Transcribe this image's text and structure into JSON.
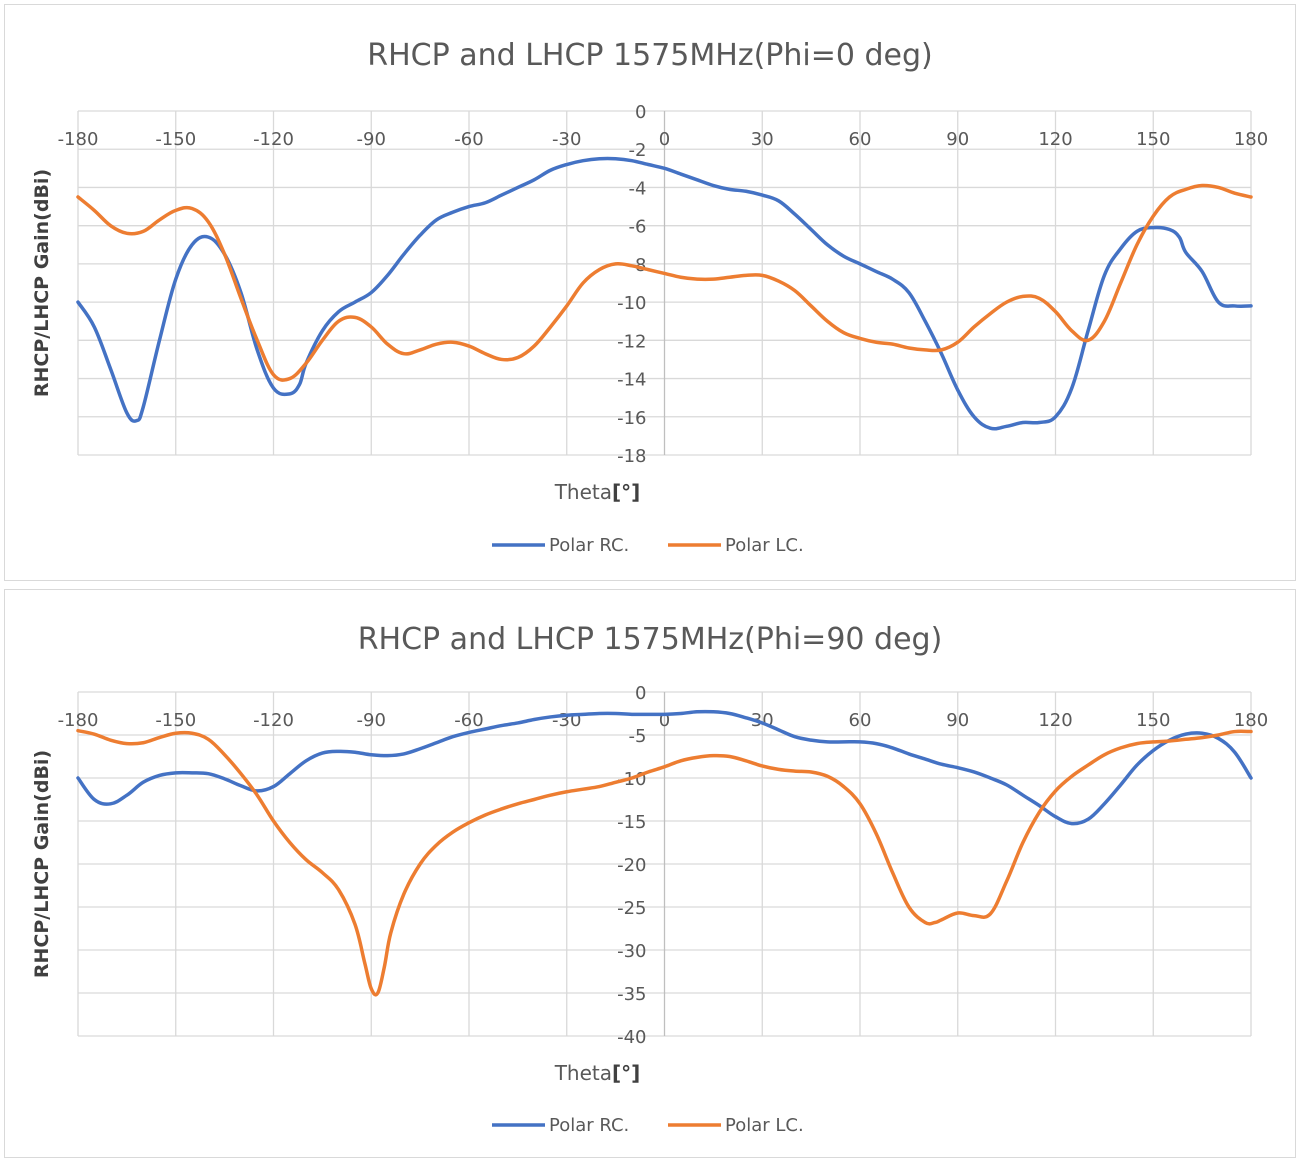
{
  "chart_data": [
    {
      "type": "line",
      "title": "RHCP and LHCP 1575MHz(Phi=0 deg)",
      "xlabel": "Theta[°]",
      "ylabel": "RHCP/LHCP Gain(dBi)",
      "xlim": [
        -180,
        180
      ],
      "ylim": [
        -18,
        0
      ],
      "xticks": [
        -180,
        -150,
        -120,
        -90,
        -60,
        -30,
        0,
        30,
        60,
        90,
        120,
        150,
        180
      ],
      "yticks": [
        0,
        -2,
        -4,
        -6,
        -8,
        -10,
        -12,
        -14,
        -16,
        -18
      ],
      "legend": "bottom",
      "series": [
        {
          "name": "Polar RC.",
          "color": "#4472C4",
          "x": [
            -180,
            -175,
            -170,
            -165,
            -162,
            -160,
            -155,
            -150,
            -145,
            -140,
            -135,
            -130,
            -125,
            -120,
            -115,
            -112,
            -110,
            -105,
            -100,
            -95,
            -90,
            -85,
            -80,
            -75,
            -70,
            -65,
            -60,
            -55,
            -50,
            -45,
            -40,
            -35,
            -30,
            -25,
            -20,
            -15,
            -10,
            -5,
            0,
            5,
            10,
            15,
            20,
            25,
            30,
            35,
            40,
            45,
            50,
            55,
            60,
            65,
            70,
            75,
            80,
            85,
            90,
            95,
            100,
            105,
            110,
            115,
            120,
            125,
            130,
            135,
            140,
            145,
            150,
            155,
            158,
            160,
            165,
            170,
            175,
            180
          ],
          "y": [
            -10.0,
            -11.3,
            -13.5,
            -15.8,
            -16.2,
            -15.5,
            -12.0,
            -8.8,
            -7.0,
            -6.6,
            -7.5,
            -9.5,
            -12.5,
            -14.5,
            -14.8,
            -14.3,
            -13.2,
            -11.5,
            -10.5,
            -10.0,
            -9.5,
            -8.6,
            -7.5,
            -6.5,
            -5.7,
            -5.3,
            -5.0,
            -4.8,
            -4.4,
            -4.0,
            -3.6,
            -3.1,
            -2.8,
            -2.6,
            -2.5,
            -2.5,
            -2.6,
            -2.8,
            -3.0,
            -3.3,
            -3.6,
            -3.9,
            -4.1,
            -4.2,
            -4.4,
            -4.7,
            -5.4,
            -6.2,
            -7.0,
            -7.6,
            -8.0,
            -8.4,
            -8.8,
            -9.5,
            -11.0,
            -12.7,
            -14.6,
            -16.0,
            -16.6,
            -16.5,
            -16.3,
            -16.3,
            -16.0,
            -14.5,
            -11.5,
            -8.6,
            -7.2,
            -6.3,
            -6.1,
            -6.2,
            -6.6,
            -7.4,
            -8.4,
            -10.0,
            -10.2,
            -10.2
          ]
        },
        {
          "name": "Polar LC.",
          "color": "#ED7D31",
          "x": [
            -180,
            -175,
            -170,
            -165,
            -160,
            -155,
            -150,
            -145,
            -140,
            -135,
            -130,
            -125,
            -120,
            -115,
            -110,
            -105,
            -100,
            -95,
            -90,
            -85,
            -80,
            -75,
            -70,
            -65,
            -60,
            -55,
            -50,
            -45,
            -40,
            -35,
            -30,
            -25,
            -20,
            -15,
            -10,
            -5,
            0,
            5,
            10,
            15,
            20,
            25,
            30,
            35,
            40,
            45,
            50,
            55,
            60,
            65,
            70,
            75,
            80,
            85,
            90,
            95,
            100,
            105,
            110,
            115,
            120,
            125,
            130,
            135,
            140,
            145,
            150,
            155,
            160,
            165,
            170,
            175,
            180
          ],
          "y": [
            -4.5,
            -5.2,
            -6.0,
            -6.4,
            -6.3,
            -5.7,
            -5.2,
            -5.1,
            -5.8,
            -7.5,
            -9.8,
            -12.0,
            -13.8,
            -14.0,
            -13.2,
            -12.0,
            -11.0,
            -10.8,
            -11.3,
            -12.2,
            -12.7,
            -12.5,
            -12.2,
            -12.1,
            -12.3,
            -12.7,
            -13.0,
            -12.9,
            -12.3,
            -11.3,
            -10.2,
            -9.0,
            -8.3,
            -8.0,
            -8.1,
            -8.3,
            -8.5,
            -8.7,
            -8.8,
            -8.8,
            -8.7,
            -8.6,
            -8.6,
            -8.9,
            -9.4,
            -10.2,
            -11.0,
            -11.6,
            -11.9,
            -12.1,
            -12.2,
            -12.4,
            -12.5,
            -12.5,
            -12.1,
            -11.3,
            -10.6,
            -10.0,
            -9.7,
            -9.8,
            -10.5,
            -11.5,
            -12.0,
            -11.0,
            -9.0,
            -7.0,
            -5.5,
            -4.5,
            -4.1,
            -3.9,
            -4.0,
            -4.3,
            -4.5
          ]
        }
      ]
    },
    {
      "type": "line",
      "title": "RHCP and LHCP 1575MHz(Phi=90 deg)",
      "xlabel": "Theta[°]",
      "ylabel": "RHCP/LHCP Gain(dBi)",
      "xlim": [
        -180,
        180
      ],
      "ylim": [
        -40,
        0
      ],
      "xticks": [
        -180,
        -150,
        -120,
        -90,
        -60,
        -30,
        0,
        30,
        60,
        90,
        120,
        150,
        180
      ],
      "yticks": [
        0,
        -5,
        -10,
        -15,
        -20,
        -25,
        -30,
        -35,
        -40
      ],
      "legend": "bottom",
      "series": [
        {
          "name": "Polar RC.",
          "color": "#4472C4",
          "x": [
            -180,
            -175,
            -170,
            -165,
            -160,
            -155,
            -150,
            -145,
            -140,
            -135,
            -130,
            -125,
            -120,
            -115,
            -110,
            -105,
            -100,
            -95,
            -90,
            -85,
            -80,
            -75,
            -70,
            -65,
            -60,
            -55,
            -50,
            -45,
            -40,
            -35,
            -30,
            -25,
            -20,
            -15,
            -10,
            -5,
            0,
            5,
            10,
            15,
            20,
            25,
            30,
            35,
            40,
            45,
            50,
            55,
            60,
            65,
            70,
            75,
            80,
            85,
            90,
            95,
            100,
            105,
            110,
            115,
            120,
            125,
            130,
            135,
            140,
            145,
            150,
            155,
            160,
            165,
            170,
            175,
            180
          ],
          "y": [
            -10.0,
            -12.5,
            -13.0,
            -12.0,
            -10.5,
            -9.7,
            -9.4,
            -9.4,
            -9.5,
            -10.1,
            -10.9,
            -11.5,
            -11.0,
            -9.5,
            -8.0,
            -7.1,
            -6.9,
            -7.0,
            -7.3,
            -7.4,
            -7.2,
            -6.6,
            -5.9,
            -5.2,
            -4.7,
            -4.3,
            -3.9,
            -3.6,
            -3.2,
            -2.9,
            -2.7,
            -2.6,
            -2.5,
            -2.5,
            -2.6,
            -2.6,
            -2.6,
            -2.5,
            -2.3,
            -2.3,
            -2.5,
            -3.0,
            -3.6,
            -4.4,
            -5.2,
            -5.6,
            -5.8,
            -5.8,
            -5.8,
            -6.0,
            -6.5,
            -7.2,
            -7.8,
            -8.4,
            -8.8,
            -9.3,
            -10.0,
            -10.8,
            -12.0,
            -13.2,
            -14.5,
            -15.3,
            -14.8,
            -13.0,
            -10.8,
            -8.5,
            -6.8,
            -5.6,
            -4.9,
            -4.8,
            -5.4,
            -7.0,
            -10.0
          ]
        },
        {
          "name": "Polar LC.",
          "color": "#ED7D31",
          "x": [
            -180,
            -175,
            -170,
            -165,
            -160,
            -155,
            -150,
            -145,
            -140,
            -135,
            -130,
            -125,
            -120,
            -115,
            -110,
            -105,
            -100,
            -95,
            -92,
            -90,
            -88,
            -86,
            -84,
            -80,
            -75,
            -70,
            -65,
            -60,
            -55,
            -50,
            -45,
            -40,
            -35,
            -30,
            -25,
            -20,
            -15,
            -10,
            -5,
            0,
            5,
            10,
            15,
            20,
            25,
            30,
            35,
            40,
            45,
            50,
            55,
            60,
            65,
            70,
            75,
            80,
            83,
            85,
            90,
            95,
            100,
            105,
            110,
            115,
            120,
            125,
            130,
            135,
            140,
            145,
            150,
            155,
            160,
            165,
            170,
            175,
            180
          ],
          "y": [
            -4.5,
            -4.9,
            -5.6,
            -6.0,
            -5.9,
            -5.3,
            -4.8,
            -4.8,
            -5.5,
            -7.3,
            -9.5,
            -12.0,
            -15.0,
            -17.5,
            -19.5,
            -21.0,
            -23.0,
            -27.0,
            -31.5,
            -34.5,
            -35.0,
            -32.0,
            -28.0,
            -23.5,
            -20.0,
            -17.8,
            -16.3,
            -15.2,
            -14.3,
            -13.6,
            -13.0,
            -12.5,
            -12.0,
            -11.6,
            -11.3,
            -11.0,
            -10.5,
            -10.0,
            -9.3,
            -8.7,
            -8.0,
            -7.6,
            -7.4,
            -7.5,
            -8.0,
            -8.6,
            -9.0,
            -9.2,
            -9.3,
            -9.8,
            -11.0,
            -13.0,
            -16.5,
            -21.0,
            -25.0,
            -26.8,
            -26.8,
            -26.5,
            -25.7,
            -26.0,
            -25.8,
            -22.0,
            -17.5,
            -14.0,
            -11.5,
            -9.8,
            -8.5,
            -7.3,
            -6.5,
            -6.0,
            -5.8,
            -5.7,
            -5.5,
            -5.3,
            -5.0,
            -4.6,
            -4.6
          ]
        }
      ]
    }
  ]
}
